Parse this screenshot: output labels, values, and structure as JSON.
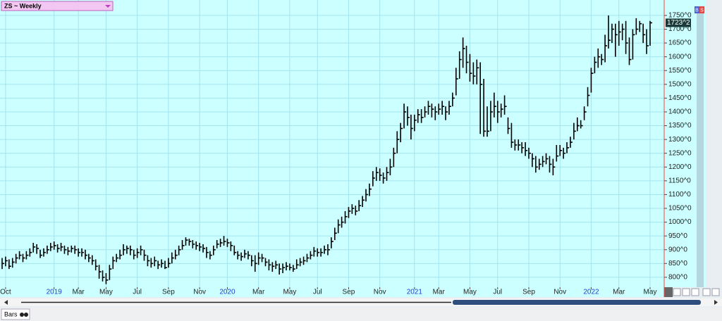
{
  "header": {
    "symbol_menu": "ZS ~ Weekly",
    "buttons": [
      "B",
      "S"
    ]
  },
  "chart_data": {
    "type": "hlc",
    "color": "#000000",
    "grid": true,
    "ylim": [
      764,
      1806
    ],
    "yticks": [
      {
        "value": 800,
        "label": "800^0"
      },
      {
        "value": 850,
        "label": "850^0"
      },
      {
        "value": 900,
        "label": "900^0"
      },
      {
        "value": 950,
        "label": "950^0"
      },
      {
        "value": 1000,
        "label": "1000^0"
      },
      {
        "value": 1050,
        "label": "1050^0"
      },
      {
        "value": 1100,
        "label": "1100^0"
      },
      {
        "value": 1150,
        "label": "1150^0"
      },
      {
        "value": 1200,
        "label": "1200^0"
      },
      {
        "value": 1250,
        "label": "1250^0"
      },
      {
        "value": 1300,
        "label": "1300^0"
      },
      {
        "value": 1350,
        "label": "1350^0"
      },
      {
        "value": 1400,
        "label": "1400^0"
      },
      {
        "value": 1450,
        "label": "1450^0"
      },
      {
        "value": 1500,
        "label": "1500^0"
      },
      {
        "value": 1550,
        "label": "1550^0"
      },
      {
        "value": 1600,
        "label": "1600^0"
      },
      {
        "value": 1650,
        "label": "1650^0"
      },
      {
        "value": 1700,
        "label": "1700^0"
      },
      {
        "value": 1750,
        "label": "1750^0"
      }
    ],
    "last_price": {
      "value": 1723.25,
      "label": "1723^2"
    },
    "categories": [
      null,
      "Oct",
      null,
      null,
      null,
      null,
      null,
      null,
      null,
      null,
      null,
      null,
      null,
      null,
      null,
      "2019",
      null,
      null,
      null,
      null,
      null,
      null,
      "Mar",
      null,
      null,
      null,
      null,
      null,
      null,
      null,
      "May",
      null,
      null,
      null,
      null,
      null,
      null,
      null,
      null,
      "Jul",
      null,
      null,
      null,
      null,
      null,
      null,
      null,
      null,
      "Sep",
      null,
      null,
      null,
      null,
      null,
      null,
      null,
      null,
      "Nov",
      null,
      null,
      null,
      null,
      null,
      null,
      null,
      "2020",
      null,
      null,
      null,
      null,
      null,
      null,
      null,
      null,
      "Mar",
      null,
      null,
      null,
      null,
      null,
      null,
      null,
      null,
      "May",
      null,
      null,
      null,
      null,
      null,
      null,
      null,
      "Jul",
      null,
      null,
      null,
      null,
      null,
      null,
      null,
      null,
      "Sep",
      null,
      null,
      null,
      null,
      null,
      null,
      null,
      null,
      "Nov",
      null,
      null,
      null,
      null,
      null,
      null,
      null,
      null,
      null,
      "2021",
      null,
      null,
      null,
      null,
      null,
      null,
      "Mar",
      null,
      null,
      null,
      null,
      null,
      null,
      null,
      null,
      "May",
      null,
      null,
      null,
      null,
      null,
      null,
      null,
      "Jul",
      null,
      null,
      null,
      null,
      null,
      null,
      null,
      null,
      "Sep",
      null,
      null,
      null,
      null,
      null,
      null,
      null,
      null,
      "Nov",
      null,
      null,
      null,
      null,
      null,
      null,
      null,
      null,
      "2022",
      null,
      null,
      null,
      null,
      null,
      null,
      null,
      "Mar",
      null,
      null,
      null,
      null,
      null,
      null,
      null,
      null,
      "May"
    ],
    "high": [
      870,
      875,
      865,
      870,
      885,
      895,
      885,
      895,
      905,
      925,
      920,
      900,
      905,
      915,
      925,
      930,
      920,
      925,
      915,
      910,
      915,
      915,
      905,
      905,
      900,
      885,
      880,
      865,
      845,
      825,
      815,
      845,
      875,
      885,
      900,
      920,
      915,
      915,
      900,
      905,
      915,
      900,
      880,
      870,
      875,
      860,
      865,
      860,
      870,
      890,
      900,
      915,
      935,
      945,
      940,
      935,
      930,
      925,
      920,
      910,
      895,
      915,
      935,
      940,
      950,
      940,
      930,
      915,
      895,
      890,
      900,
      895,
      880,
      880,
      890,
      885,
      870,
      865,
      855,
      860,
      850,
      850,
      855,
      850,
      845,
      865,
      870,
      875,
      885,
      895,
      910,
      905,
      905,
      915,
      920,
      945,
      980,
      1010,
      1020,
      1040,
      1055,
      1065,
      1060,
      1080,
      1095,
      1120,
      1140,
      1185,
      1200,
      1195,
      1180,
      1200,
      1230,
      1270,
      1330,
      1360,
      1430,
      1420,
      1390,
      1390,
      1410,
      1410,
      1420,
      1440,
      1430,
      1420,
      1430,
      1440,
      1420,
      1440,
      1470,
      1560,
      1620,
      1670,
      1640,
      1610,
      1580,
      1590,
      1580,
      1520,
      1420,
      1440,
      1470,
      1440,
      1430,
      1460,
      1380,
      1360,
      1300,
      1300,
      1290,
      1290,
      1270,
      1250,
      1240,
      1230,
      1240,
      1250,
      1240,
      1230,
      1280,
      1280,
      1270,
      1290,
      1310,
      1360,
      1380,
      1370,
      1420,
      1490,
      1560,
      1600,
      1630,
      1610,
      1680,
      1750,
      1720,
      1720,
      1730,
      1720,
      1730,
      1670,
      1700,
      1740,
      1730,
      1720,
      1700,
      1730
    ],
    "low": [
      830,
      840,
      830,
      835,
      850,
      865,
      855,
      865,
      875,
      890,
      885,
      870,
      875,
      885,
      895,
      900,
      890,
      895,
      885,
      880,
      890,
      885,
      875,
      875,
      865,
      855,
      845,
      825,
      795,
      785,
      775,
      790,
      830,
      855,
      865,
      880,
      885,
      880,
      865,
      870,
      880,
      860,
      840,
      835,
      840,
      830,
      835,
      830,
      835,
      850,
      865,
      880,
      900,
      915,
      915,
      905,
      900,
      895,
      890,
      870,
      865,
      880,
      905,
      910,
      915,
      910,
      895,
      880,
      865,
      860,
      870,
      865,
      840,
      820,
      845,
      855,
      840,
      825,
      820,
      830,
      810,
      815,
      825,
      825,
      820,
      830,
      840,
      845,
      855,
      865,
      875,
      875,
      875,
      885,
      880,
      905,
      935,
      960,
      980,
      995,
      1015,
      1030,
      1025,
      1040,
      1055,
      1075,
      1095,
      1130,
      1150,
      1150,
      1140,
      1150,
      1170,
      1200,
      1250,
      1290,
      1340,
      1350,
      1300,
      1330,
      1360,
      1360,
      1380,
      1390,
      1380,
      1370,
      1390,
      1390,
      1370,
      1390,
      1420,
      1460,
      1520,
      1560,
      1540,
      1510,
      1500,
      1500,
      1320,
      1310,
      1310,
      1330,
      1380,
      1360,
      1380,
      1390,
      1320,
      1270,
      1260,
      1260,
      1250,
      1240,
      1230,
      1200,
      1180,
      1190,
      1200,
      1210,
      1180,
      1170,
      1220,
      1240,
      1230,
      1250,
      1270,
      1300,
      1330,
      1340,
      1370,
      1420,
      1470,
      1540,
      1560,
      1570,
      1580,
      1630,
      1650,
      1600,
      1640,
      1660,
      1610,
      1570,
      1590,
      1680,
      1690,
      1650,
      1610,
      1640
    ],
    "close": [
      850,
      860,
      840,
      855,
      870,
      880,
      870,
      880,
      890,
      910,
      905,
      880,
      890,
      900,
      910,
      915,
      905,
      910,
      900,
      895,
      905,
      900,
      890,
      890,
      880,
      870,
      860,
      840,
      820,
      800,
      790,
      830,
      860,
      870,
      880,
      900,
      905,
      900,
      880,
      890,
      900,
      880,
      860,
      850,
      860,
      845,
      850,
      835,
      850,
      870,
      880,
      900,
      915,
      935,
      930,
      920,
      915,
      910,
      905,
      890,
      880,
      900,
      920,
      925,
      930,
      925,
      915,
      890,
      880,
      875,
      885,
      880,
      860,
      850,
      870,
      870,
      855,
      845,
      840,
      845,
      830,
      835,
      840,
      835,
      830,
      845,
      855,
      860,
      870,
      880,
      895,
      890,
      890,
      900,
      900,
      930,
      960,
      990,
      1000,
      1020,
      1040,
      1050,
      1040,
      1060,
      1080,
      1100,
      1120,
      1160,
      1180,
      1170,
      1160,
      1180,
      1200,
      1250,
      1300,
      1340,
      1400,
      1380,
      1340,
      1370,
      1390,
      1380,
      1400,
      1420,
      1410,
      1400,
      1410,
      1420,
      1400,
      1420,
      1450,
      1520,
      1590,
      1630,
      1580,
      1540,
      1530,
      1560,
      1500,
      1330,
      1330,
      1400,
      1420,
      1400,
      1410,
      1420,
      1340,
      1290,
      1280,
      1280,
      1270,
      1260,
      1250,
      1230,
      1200,
      1210,
      1220,
      1230,
      1210,
      1200,
      1240,
      1260,
      1250,
      1270,
      1290,
      1330,
      1350,
      1350,
      1400,
      1460,
      1540,
      1580,
      1600,
      1590,
      1640,
      1660,
      1700,
      1680,
      1690,
      1700,
      1650,
      1590,
      1680,
      1700,
      1720,
      1680,
      1640,
      1723.25
    ]
  },
  "footer": {
    "tab": "Bars"
  }
}
